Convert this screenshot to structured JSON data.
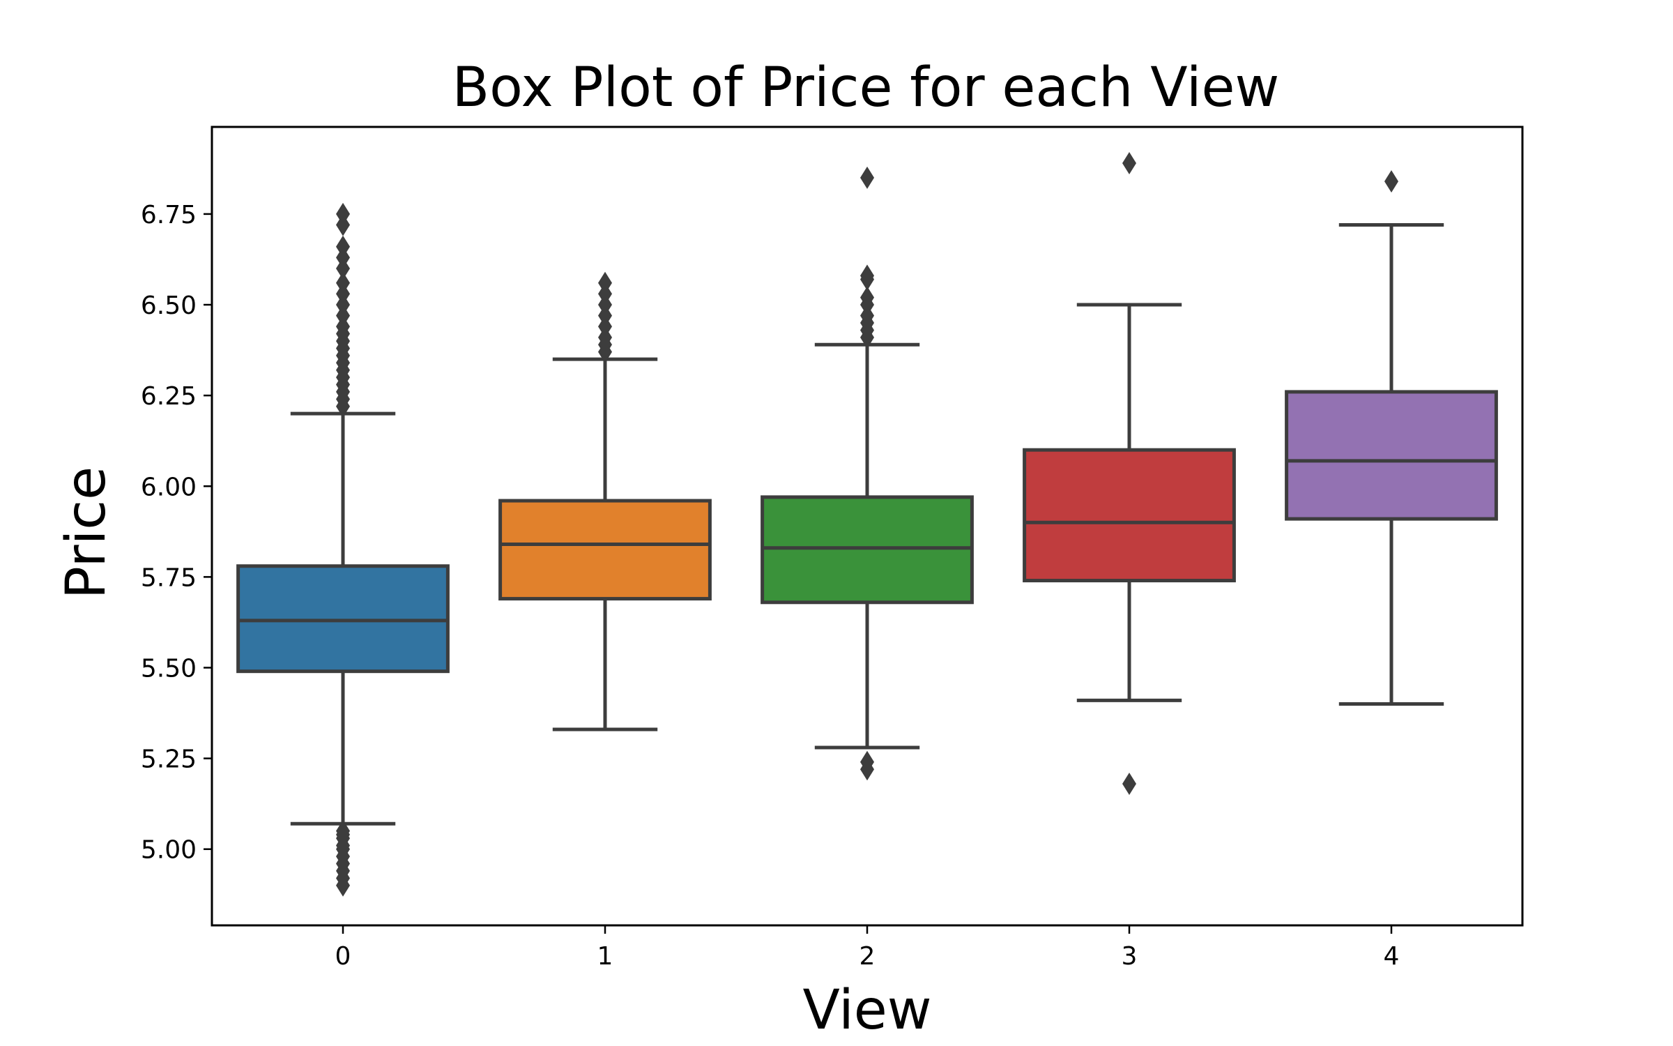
{
  "chart_data": {
    "type": "box",
    "title": "Box Plot of Price for each View",
    "xlabel": "View",
    "ylabel": "Price",
    "ylim": [
      4.79,
      6.99
    ],
    "yticks": [
      5.0,
      5.25,
      5.5,
      5.75,
      6.0,
      6.25,
      6.5,
      6.75
    ],
    "ytick_labels": [
      "5.00",
      "5.25",
      "5.50",
      "5.75",
      "6.00",
      "6.25",
      "6.50",
      "6.75"
    ],
    "grid": false,
    "categories": [
      "0",
      "1",
      "2",
      "3",
      "4"
    ],
    "colors": [
      "#3274a1",
      "#e1812c",
      "#3a923a",
      "#c03d3e",
      "#9372b2"
    ],
    "boxes": [
      {
        "category": "0",
        "whisker_low": 5.07,
        "q1": 5.49,
        "median": 5.63,
        "q3": 5.78,
        "whisker_high": 6.2,
        "fliers": [
          4.9,
          4.92,
          4.94,
          4.96,
          4.98,
          5.0,
          5.01,
          5.03,
          5.04,
          5.05,
          6.22,
          6.24,
          6.26,
          6.28,
          6.3,
          6.32,
          6.34,
          6.36,
          6.38,
          6.4,
          6.42,
          6.44,
          6.47,
          6.5,
          6.53,
          6.56,
          6.6,
          6.63,
          6.66,
          6.72,
          6.75
        ]
      },
      {
        "category": "1",
        "whisker_low": 5.33,
        "q1": 5.69,
        "median": 5.84,
        "q3": 5.96,
        "whisker_high": 6.35,
        "fliers": [
          6.37,
          6.39,
          6.41,
          6.44,
          6.47,
          6.5,
          6.53,
          6.56
        ]
      },
      {
        "category": "2",
        "whisker_low": 5.28,
        "q1": 5.68,
        "median": 5.83,
        "q3": 5.97,
        "whisker_high": 6.39,
        "fliers": [
          5.22,
          5.24,
          6.41,
          6.43,
          6.45,
          6.47,
          6.5,
          6.52,
          6.57,
          6.58,
          6.85
        ]
      },
      {
        "category": "3",
        "whisker_low": 5.41,
        "q1": 5.74,
        "median": 5.9,
        "q3": 6.1,
        "whisker_high": 6.5,
        "fliers": [
          5.18,
          6.89
        ]
      },
      {
        "category": "4",
        "whisker_low": 5.4,
        "q1": 5.91,
        "median": 6.07,
        "q3": 6.26,
        "whisker_high": 6.72,
        "fliers": [
          6.84
        ]
      }
    ]
  }
}
